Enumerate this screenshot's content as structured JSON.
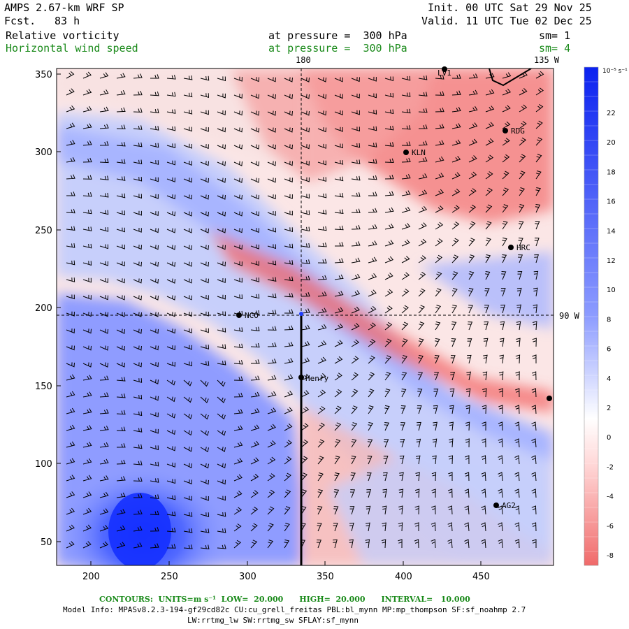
{
  "header": {
    "model": "AMPS 2.67-km WRF SP",
    "forecast_label": "Fcst.",
    "forecast_hours": "83 h",
    "init": "Init. 00 UTC Sat 29 Nov 25",
    "valid": "Valid. 11 UTC Tue 02 Dec 25",
    "field1": "Relative vorticity",
    "field1_level": "at pressure =  300 hPa",
    "field1_sm": "sm= 1",
    "field2": "Horizontal wind speed",
    "field2_level": "at pressure =  300 hPa",
    "field2_sm": "sm= 4"
  },
  "map": {
    "x_ticks": [
      "200",
      "250",
      "300",
      "350",
      "400",
      "450"
    ],
    "y_ticks": [
      "350",
      "300",
      "250",
      "200",
      "150",
      "100",
      "50"
    ],
    "lon_labels": [
      "180",
      "135 W"
    ],
    "lat_label": "90 W",
    "stations": [
      "LV1",
      "RDG",
      "KLN",
      "HRC",
      "NCO",
      "Henry",
      "AG2"
    ],
    "colors": {
      "positive": "#1f3dff",
      "negative": "#f05a5a",
      "neutral": "#ffffff"
    }
  },
  "colorbar": {
    "unit": "10⁻⁵ s⁻¹",
    "ticks": [
      "22",
      "20",
      "18",
      "16",
      "14",
      "12",
      "10",
      "8",
      "6",
      "4",
      "2",
      "0",
      "-2",
      "-4",
      "-6",
      "-8"
    ]
  },
  "footer": {
    "contours": "CONTOURS:  UNITS=m s⁻¹  LOW=  20.000      HIGH=  20.000      INTERVAL=   10.000",
    "model_info": "Model Info: MPASv8.2.3-194-gf29cd82c CU:cu_grell_freitas PBL:bl_mynn MP:mp_thompson SF:sf_noahmp 2.7",
    "model_info2": "LW:rrtmg_lw SW:rrtmg_sw SFLAY:sf_mynn"
  }
}
